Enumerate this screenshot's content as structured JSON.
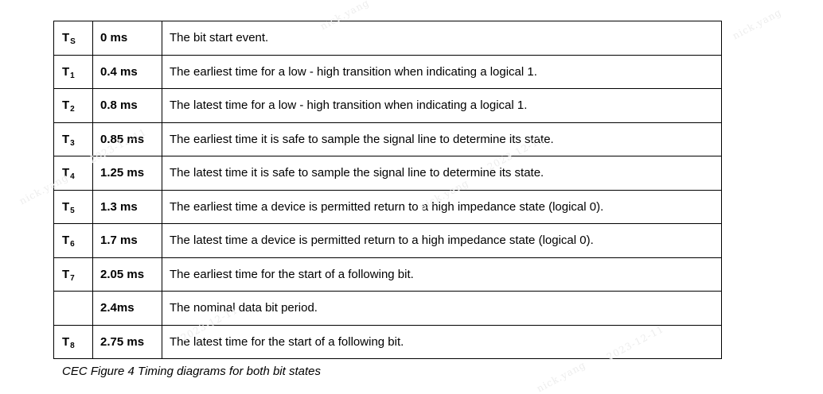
{
  "timing_table": {
    "rows": [
      {
        "symbol": "T",
        "subscript": "S",
        "time": "0 ms",
        "description": "The bit start event."
      },
      {
        "symbol": "T",
        "subscript": "1",
        "time": "0.4 ms",
        "description": "The earliest time for a low - high transition when indicating a logical 1."
      },
      {
        "symbol": "T",
        "subscript": "2",
        "time": "0.8 ms",
        "description": "The latest time for a low - high transition when indicating a logical 1."
      },
      {
        "symbol": "T",
        "subscript": "3",
        "time": "0.85 ms",
        "description": "The earliest time it is safe to sample the signal line to determine its state."
      },
      {
        "symbol": "T",
        "subscript": "4",
        "time": "1.25 ms",
        "description": "The latest time it is safe to sample the signal line to determine its state."
      },
      {
        "symbol": "T",
        "subscript": "5",
        "time": "1.3 ms",
        "description": "The earliest time a device is permitted return to a high impedance state (logical 0)."
      },
      {
        "symbol": "T",
        "subscript": "6",
        "time": "1.7 ms",
        "description": "The latest time a device is permitted return to a high impedance state (logical 0)."
      },
      {
        "symbol": "T",
        "subscript": "7",
        "time": "2.05 ms",
        "description": "The earliest time for the start of a following bit."
      },
      {
        "symbol": "",
        "subscript": "",
        "time": "2.4ms",
        "description": "The nominal data bit period."
      },
      {
        "symbol": "T",
        "subscript": "8",
        "time": "2.75 ms",
        "description": "The latest time for the start of a following bit."
      }
    ]
  },
  "caption": "CEC Figure 4 Timing diagrams for both bit states",
  "watermark": {
    "text": "nick.yang",
    "date": "2023-12-11"
  }
}
